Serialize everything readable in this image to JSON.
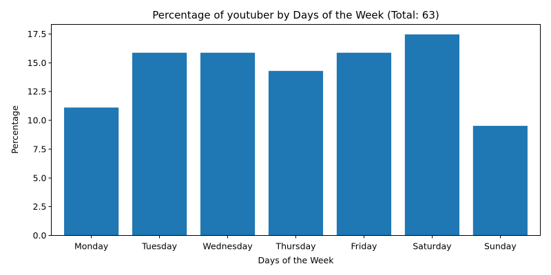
{
  "chart_data": {
    "type": "bar",
    "title": "Percentage of youtuber by Days of the Week (Total: 63)",
    "xlabel": "Days of the Week",
    "ylabel": "Percentage",
    "categories": [
      "Monday",
      "Tuesday",
      "Wednesday",
      "Thursday",
      "Friday",
      "Saturday",
      "Sunday"
    ],
    "values": [
      11.11,
      15.87,
      15.87,
      14.29,
      15.87,
      17.46,
      9.52
    ],
    "ylim": [
      0,
      18.33
    ],
    "yticks": [
      "0.0",
      "2.5",
      "5.0",
      "7.5",
      "10.0",
      "12.5",
      "15.0",
      "17.5"
    ],
    "bar_color": "#1f77b4",
    "grid": false,
    "legend": false
  }
}
